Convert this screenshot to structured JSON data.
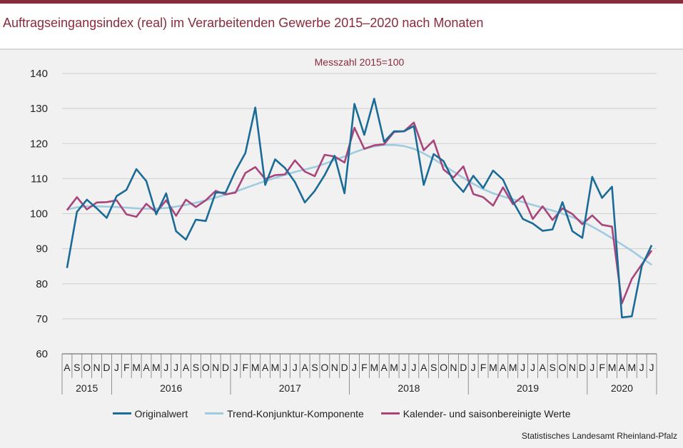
{
  "header": {
    "title": "Auftragseingangsindex (real) im Verarbeitenden Gewerbe 2015–2020 nach Monaten"
  },
  "footer": {
    "source": "Statistisches Landesamt Rheinland-Pfalz"
  },
  "colors": {
    "brand": "#8b2a3b",
    "original": "#1a6b95",
    "trend": "#9fcbe0",
    "seasonal": "#a8457a",
    "panel": "#f1f1f1"
  },
  "chart_data": {
    "type": "line",
    "subtitle": "Messzahl 2015=100",
    "ylim": [
      60,
      140
    ],
    "yticks": [
      60,
      70,
      80,
      90,
      100,
      110,
      120,
      130,
      140
    ],
    "grid": true,
    "legend_placement": "bottom",
    "month_labels": [
      "A",
      "S",
      "O",
      "N",
      "D",
      "J",
      "F",
      "M",
      "A",
      "M",
      "J",
      "J",
      "A",
      "S",
      "O",
      "N",
      "D",
      "J",
      "F",
      "M",
      "A",
      "M",
      "J",
      "J",
      "A",
      "S",
      "O",
      "N",
      "D",
      "J",
      "F",
      "M",
      "A",
      "M",
      "J",
      "J",
      "A",
      "S",
      "O",
      "N",
      "D",
      "J",
      "F",
      "M",
      "A",
      "M",
      "J",
      "J",
      "A",
      "S",
      "O",
      "N",
      "D",
      "J",
      "F",
      "M",
      "A",
      "M",
      "J",
      "J"
    ],
    "year_groups": [
      {
        "label": "2015",
        "count": 5
      },
      {
        "label": "2016",
        "count": 12
      },
      {
        "label": "2017",
        "count": 12
      },
      {
        "label": "2018",
        "count": 12
      },
      {
        "label": "2019",
        "count": 12
      },
      {
        "label": "2020",
        "count": 7
      }
    ],
    "series": [
      {
        "name": "Originalwert",
        "color": "#1a6b95",
        "values": [
          84.5,
          100.5,
          104,
          101.5,
          98.8,
          105,
          106.8,
          112.7,
          109.3,
          99.8,
          105.8,
          95,
          92.6,
          98.3,
          97.9,
          106,
          106,
          112.2,
          117.3,
          130.3,
          108.2,
          115.5,
          113,
          109,
          103.2,
          106.5,
          111,
          116.5,
          105.8,
          131.3,
          122.5,
          132.8,
          120.5,
          123.5,
          123.5,
          125,
          108.2,
          117,
          115,
          109.3,
          106.2,
          110.8,
          107.3,
          112.3,
          109.7,
          103.5,
          98.5,
          97.2,
          95.1,
          95.5,
          103.3,
          95,
          93.1,
          110.5,
          104.5,
          107.7,
          70.4,
          70.7,
          85,
          91
        ]
      },
      {
        "name": "Trend-Konjunktur-Komponente",
        "color": "#9fcbe0",
        "values": [
          101.2,
          101.8,
          102.1,
          102.1,
          102.0,
          101.9,
          101.7,
          101.5,
          101.4,
          101.4,
          101.6,
          102.0,
          102.5,
          103.1,
          103.8,
          104.6,
          105.4,
          106.3,
          107.3,
          108.3,
          109.3,
          110.2,
          111.1,
          111.9,
          112.6,
          113.3,
          114.2,
          115.3,
          116.3,
          117.5,
          118.5,
          119.2,
          119.6,
          119.6,
          119.3,
          118.5,
          117.2,
          115.6,
          113.8,
          112.0,
          110.2,
          108.5,
          107.0,
          105.8,
          104.9,
          104.1,
          103.3,
          102.5,
          101.7,
          100.9,
          100.0,
          99.0,
          97.8,
          96.3,
          94.7,
          93.0,
          91.2,
          89.4,
          87.4,
          85.4
        ]
      },
      {
        "name": "Kalender- und saisonbereinigte Werte",
        "color": "#a8457a",
        "values": [
          101,
          104.7,
          101.2,
          103.2,
          103.3,
          103.8,
          99.8,
          99.1,
          102.8,
          100.4,
          103.8,
          99.4,
          104,
          101.9,
          103.8,
          106.5,
          105.5,
          106,
          111.6,
          113.3,
          109.9,
          111,
          111.2,
          115.2,
          112,
          110.7,
          116.8,
          116.3,
          114.6,
          124.5,
          118.5,
          119.5,
          119.8,
          123.3,
          123.5,
          126,
          118.1,
          120.9,
          112.6,
          110.3,
          113.5,
          105.6,
          104.7,
          102.3,
          107.5,
          102.7,
          105,
          98.5,
          102.1,
          98.2,
          101.5,
          99.9,
          97,
          99.5,
          96.8,
          96.3,
          74.4,
          81.4,
          85.5,
          89.5
        ]
      }
    ]
  }
}
